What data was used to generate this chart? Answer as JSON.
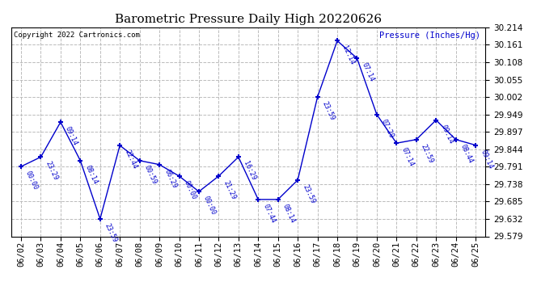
{
  "title": "Barometric Pressure Daily High 20220626",
  "ylabel": "Pressure (Inches/Hg)",
  "copyright": "Copyright 2022 Cartronics.com",
  "line_color": "#0000CC",
  "background_color": "#ffffff",
  "grid_color": "#bbbbbb",
  "ylim": [
    29.579,
    30.214
  ],
  "yticks": [
    29.579,
    29.632,
    29.685,
    29.738,
    29.791,
    29.844,
    29.897,
    29.949,
    30.002,
    30.055,
    30.108,
    30.161,
    30.214
  ],
  "data_points": [
    {
      "date": "06/02",
      "x": 0,
      "pressure": 29.791,
      "time": "00:00"
    },
    {
      "date": "06/03",
      "x": 1,
      "pressure": 29.82,
      "time": "23:29"
    },
    {
      "date": "06/04",
      "x": 2,
      "pressure": 29.926,
      "time": "09:14"
    },
    {
      "date": "06/05",
      "x": 3,
      "pressure": 29.809,
      "time": "08:14"
    },
    {
      "date": "06/06",
      "x": 4,
      "pressure": 29.632,
      "time": "23:59"
    },
    {
      "date": "06/07",
      "x": 5,
      "pressure": 29.855,
      "time": "22:44"
    },
    {
      "date": "06/08",
      "x": 6,
      "pressure": 29.809,
      "time": "00:59"
    },
    {
      "date": "06/09",
      "x": 7,
      "pressure": 29.797,
      "time": "06:29"
    },
    {
      "date": "06/10",
      "x": 8,
      "pressure": 29.762,
      "time": "00:00"
    },
    {
      "date": "06/11",
      "x": 9,
      "pressure": 29.715,
      "time": "00:00"
    },
    {
      "date": "06/12",
      "x": 10,
      "pressure": 29.762,
      "time": "21:29"
    },
    {
      "date": "06/13",
      "x": 11,
      "pressure": 29.82,
      "time": "16:29"
    },
    {
      "date": "06/14",
      "x": 12,
      "pressure": 29.691,
      "time": "07:44"
    },
    {
      "date": "06/15",
      "x": 13,
      "pressure": 29.691,
      "time": "08:14"
    },
    {
      "date": "06/16",
      "x": 14,
      "pressure": 29.75,
      "time": "23:59"
    },
    {
      "date": "06/17",
      "x": 15,
      "pressure": 30.002,
      "time": "23:59"
    },
    {
      "date": "06/18",
      "x": 16,
      "pressure": 30.173,
      "time": "12:14"
    },
    {
      "date": "06/19",
      "x": 17,
      "pressure": 30.12,
      "time": "07:14"
    },
    {
      "date": "06/20",
      "x": 18,
      "pressure": 29.949,
      "time": "07:29"
    },
    {
      "date": "06/21",
      "x": 19,
      "pressure": 29.862,
      "time": "07:14"
    },
    {
      "date": "06/22",
      "x": 20,
      "pressure": 29.873,
      "time": "22:59"
    },
    {
      "date": "06/23",
      "x": 21,
      "pressure": 29.932,
      "time": "09:14"
    },
    {
      "date": "06/24",
      "x": 22,
      "pressure": 29.873,
      "time": "08:44"
    },
    {
      "date": "06/25",
      "x": 23,
      "pressure": 29.856,
      "time": "09:14"
    }
  ]
}
